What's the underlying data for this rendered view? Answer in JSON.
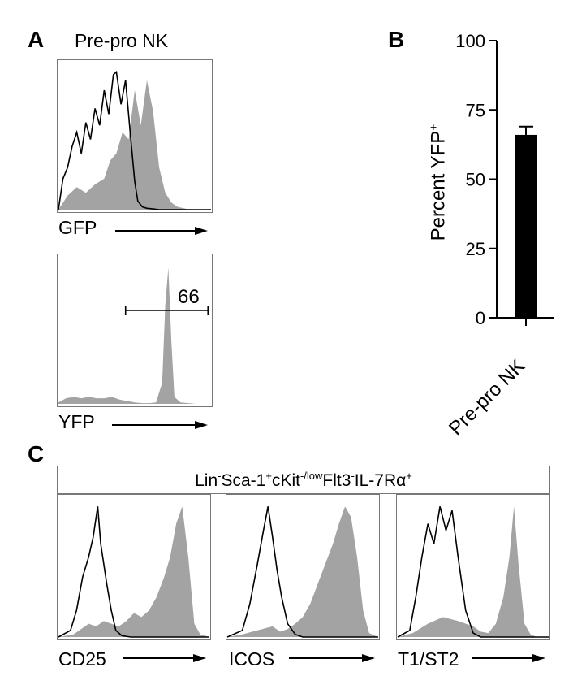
{
  "panels": {
    "a": {
      "letter": "A",
      "title": "Pre-pro NK"
    },
    "b": {
      "letter": "B"
    },
    "c": {
      "letter": "C"
    }
  },
  "gate": {
    "parts": [
      {
        "text": "Lin",
        "sup": "-"
      },
      {
        "text": " Sca-1",
        "sup": "+"
      },
      {
        "text": " cKit",
        "sup": "-/low"
      },
      {
        "text": " Flt3",
        "sup": "-"
      },
      {
        "text": " IL-7Rα",
        "sup": "+"
      }
    ]
  },
  "colors": {
    "filled": "#a3a3a3",
    "outline": "#000000",
    "bar": "#000000",
    "frame": "#777777"
  },
  "chart_data": [
    {
      "type": "histogram",
      "panel": "A",
      "title": "Pre-pro NK",
      "xlabel": "GFP",
      "series": [
        {
          "style": "filled-gray",
          "x": [
            0,
            0.06,
            0.12,
            0.18,
            0.24,
            0.3,
            0.34,
            0.38,
            0.42,
            0.46,
            0.5,
            0.54,
            0.58,
            0.62,
            0.66,
            0.7,
            0.74,
            0.78,
            0.82,
            0.86,
            0.9,
            0.95,
            1.0
          ],
          "y": [
            0,
            0.1,
            0.16,
            0.12,
            0.18,
            0.22,
            0.35,
            0.4,
            0.55,
            0.5,
            0.85,
            0.6,
            0.92,
            0.7,
            0.3,
            0.12,
            0.05,
            0.02,
            0.01,
            0,
            0,
            0,
            0
          ]
        },
        {
          "style": "black-outline",
          "x": [
            0,
            0.03,
            0.06,
            0.09,
            0.12,
            0.15,
            0.18,
            0.21,
            0.24,
            0.27,
            0.3,
            0.33,
            0.36,
            0.38,
            0.41,
            0.44,
            0.47,
            0.5,
            0.52,
            0.55,
            0.58,
            0.62,
            0.66,
            0.7,
            0.75,
            0.8,
            0.9,
            1.0
          ],
          "y": [
            0,
            0.22,
            0.3,
            0.45,
            0.55,
            0.4,
            0.62,
            0.5,
            0.72,
            0.6,
            0.85,
            0.68,
            0.96,
            0.98,
            0.75,
            0.92,
            0.55,
            0.2,
            0.06,
            0.02,
            0.01,
            0.005,
            0,
            0,
            0,
            0,
            0,
            0
          ]
        }
      ]
    },
    {
      "type": "histogram",
      "panel": "A",
      "xlabel": "YFP",
      "gate_value": "66",
      "gate_range": [
        0.44,
        0.98
      ],
      "series": [
        {
          "style": "filled-gray",
          "x": [
            0,
            0.05,
            0.1,
            0.15,
            0.2,
            0.25,
            0.3,
            0.35,
            0.4,
            0.45,
            0.5,
            0.55,
            0.6,
            0.64,
            0.68,
            0.7,
            0.72,
            0.74,
            0.76,
            0.8,
            0.9,
            1.0
          ],
          "y": [
            0.01,
            0.04,
            0.05,
            0.04,
            0.05,
            0.04,
            0.04,
            0.05,
            0.03,
            0.02,
            0.01,
            0.005,
            0.005,
            0.01,
            0.15,
            0.7,
            0.97,
            0.45,
            0.05,
            0.01,
            0,
            0
          ]
        }
      ]
    },
    {
      "type": "bar",
      "panel": "B",
      "categories": [
        "Pre-pro NK"
      ],
      "values": [
        66
      ],
      "error": [
        3
      ],
      "ylabel": "Percent YFP+",
      "ylim": [
        0,
        100
      ],
      "yticks": [
        0,
        25,
        50,
        75,
        100
      ]
    },
    {
      "type": "histogram",
      "panel": "C",
      "xlabel": "CD25",
      "series": [
        {
          "style": "filled-gray",
          "x": [
            0,
            0.1,
            0.15,
            0.2,
            0.25,
            0.3,
            0.35,
            0.4,
            0.45,
            0.5,
            0.55,
            0.6,
            0.65,
            0.7,
            0.74,
            0.78,
            0.82,
            0.86,
            0.9,
            0.94,
            1.0
          ],
          "y": [
            0,
            0.02,
            0.06,
            0.1,
            0.08,
            0.12,
            0.1,
            0.08,
            0.12,
            0.18,
            0.15,
            0.2,
            0.3,
            0.45,
            0.6,
            0.85,
            0.98,
            0.6,
            0.1,
            0.02,
            0
          ]
        },
        {
          "style": "black-outline",
          "x": [
            0,
            0.08,
            0.12,
            0.16,
            0.2,
            0.23,
            0.26,
            0.28,
            0.3,
            0.32,
            0.35,
            0.38,
            0.42,
            0.48,
            0.55,
            1.0
          ],
          "y": [
            0,
            0.05,
            0.2,
            0.45,
            0.6,
            0.75,
            0.98,
            0.7,
            0.55,
            0.4,
            0.2,
            0.05,
            0.01,
            0,
            0,
            0
          ]
        }
      ]
    },
    {
      "type": "histogram",
      "panel": "C",
      "xlabel": "ICOS",
      "series": [
        {
          "style": "filled-gray",
          "x": [
            0,
            0.1,
            0.2,
            0.3,
            0.35,
            0.4,
            0.45,
            0.5,
            0.55,
            0.6,
            0.65,
            0.7,
            0.74,
            0.78,
            0.82,
            0.86,
            0.9,
            0.94,
            1.0
          ],
          "y": [
            0,
            0.02,
            0.05,
            0.08,
            0.04,
            0.06,
            0.1,
            0.15,
            0.25,
            0.4,
            0.55,
            0.7,
            0.85,
            0.98,
            0.9,
            0.6,
            0.2,
            0.03,
            0
          ]
        },
        {
          "style": "black-outline",
          "x": [
            0,
            0.1,
            0.15,
            0.2,
            0.24,
            0.27,
            0.3,
            0.33,
            0.36,
            0.4,
            0.45,
            0.5,
            1.0
          ],
          "y": [
            0,
            0.05,
            0.25,
            0.55,
            0.8,
            0.98,
            0.75,
            0.5,
            0.3,
            0.1,
            0.02,
            0,
            0
          ]
        }
      ]
    },
    {
      "type": "histogram",
      "panel": "C",
      "xlabel": "T1/ST2",
      "series": [
        {
          "style": "filled-gray",
          "x": [
            0,
            0.1,
            0.2,
            0.3,
            0.4,
            0.5,
            0.55,
            0.6,
            0.65,
            0.7,
            0.74,
            0.77,
            0.8,
            0.84,
            0.88,
            0.92,
            1.0
          ],
          "y": [
            0,
            0.03,
            0.1,
            0.15,
            0.12,
            0.08,
            0.04,
            0.03,
            0.1,
            0.3,
            0.6,
            0.98,
            0.55,
            0.1,
            0.02,
            0,
            0
          ]
        },
        {
          "style": "black-outline",
          "x": [
            0,
            0.08,
            0.12,
            0.16,
            0.2,
            0.24,
            0.28,
            0.32,
            0.36,
            0.4,
            0.45,
            0.5,
            0.55,
            1.0
          ],
          "y": [
            0,
            0.05,
            0.3,
            0.6,
            0.85,
            0.7,
            0.98,
            0.8,
            0.95,
            0.6,
            0.2,
            0.03,
            0,
            0
          ]
        }
      ]
    }
  ]
}
